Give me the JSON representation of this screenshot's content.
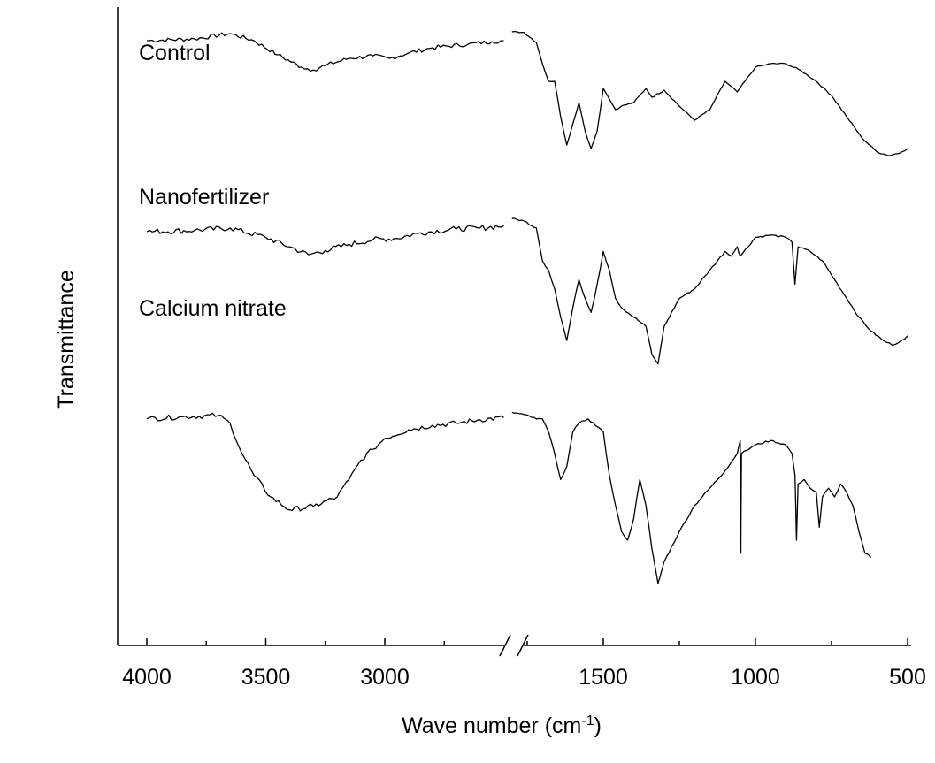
{
  "chart_data": {
    "type": "line",
    "xlabel": "Wave number (cm",
    "xlabel_sup": "-1",
    "xlabel_close": ")",
    "ylabel": "Transmittance",
    "x_reversed": true,
    "axis_break": "between 2800 and 1800",
    "x_ticks": [
      "4000",
      "3500",
      "3000",
      "1500",
      "1000",
      "500"
    ],
    "series": [
      {
        "name": "Control",
        "segments": [
          [
            [
              4000,
              0.835
            ],
            [
              3800,
              0.84
            ],
            [
              3650,
              0.855
            ],
            [
              3550,
              0.835
            ],
            [
              3450,
              0.795
            ],
            [
              3350,
              0.76
            ],
            [
              3300,
              0.752
            ],
            [
              3250,
              0.765
            ],
            [
              3150,
              0.785
            ],
            [
              3050,
              0.792
            ],
            [
              2980,
              0.785
            ],
            [
              2900,
              0.8
            ],
            [
              2800,
              0.815
            ],
            [
              2650,
              0.825
            ],
            [
              2550,
              0.832
            ],
            [
              2500,
              0.835
            ]
          ],
          [
            [
              1800,
              0.86
            ],
            [
              1760,
              0.858
            ],
            [
              1720,
              0.83
            ],
            [
              1700,
              0.77
            ],
            [
              1680,
              0.72
            ],
            [
              1660,
              0.72
            ],
            [
              1640,
              0.62
            ],
            [
              1620,
              0.54
            ],
            [
              1600,
              0.6
            ],
            [
              1580,
              0.66
            ],
            [
              1560,
              0.58
            ],
            [
              1540,
              0.53
            ],
            [
              1520,
              0.58
            ],
            [
              1500,
              0.7
            ],
            [
              1480,
              0.67
            ],
            [
              1460,
              0.64
            ],
            [
              1440,
              0.65
            ],
            [
              1400,
              0.66
            ],
            [
              1360,
              0.7
            ],
            [
              1340,
              0.675
            ],
            [
              1300,
              0.695
            ],
            [
              1250,
              0.65
            ],
            [
              1200,
              0.61
            ],
            [
              1150,
              0.64
            ],
            [
              1100,
              0.72
            ],
            [
              1060,
              0.69
            ],
            [
              1000,
              0.76
            ],
            [
              950,
              0.77
            ],
            [
              900,
              0.77
            ],
            [
              850,
              0.75
            ],
            [
              800,
              0.72
            ],
            [
              750,
              0.68
            ],
            [
              700,
              0.62
            ],
            [
              650,
              0.56
            ],
            [
              600,
              0.52
            ],
            [
              560,
              0.51
            ],
            [
              520,
              0.52
            ],
            [
              500,
              0.53
            ]
          ]
        ]
      },
      {
        "name": "Nanofertilizer",
        "segments": [
          [
            [
              4000,
              0.562
            ],
            [
              3800,
              0.565
            ],
            [
              3650,
              0.57
            ],
            [
              3500,
              0.55
            ],
            [
              3400,
              0.53
            ],
            [
              3320,
              0.513
            ],
            [
              3250,
              0.522
            ],
            [
              3150,
              0.535
            ],
            [
              3050,
              0.545
            ],
            [
              2950,
              0.548
            ],
            [
              2850,
              0.56
            ],
            [
              2700,
              0.568
            ],
            [
              2600,
              0.57
            ],
            [
              2500,
              0.575
            ]
          ],
          [
            [
              1800,
              0.59
            ],
            [
              1760,
              0.585
            ],
            [
              1720,
              0.57
            ],
            [
              1700,
              0.5
            ],
            [
              1680,
              0.48
            ],
            [
              1660,
              0.44
            ],
            [
              1640,
              0.38
            ],
            [
              1620,
              0.33
            ],
            [
              1600,
              0.4
            ],
            [
              1580,
              0.46
            ],
            [
              1560,
              0.42
            ],
            [
              1540,
              0.39
            ],
            [
              1520,
              0.45
            ],
            [
              1500,
              0.52
            ],
            [
              1480,
              0.48
            ],
            [
              1460,
              0.42
            ],
            [
              1440,
              0.4
            ],
            [
              1400,
              0.38
            ],
            [
              1360,
              0.36
            ],
            [
              1340,
              0.3
            ],
            [
              1320,
              0.28
            ],
            [
              1300,
              0.36
            ],
            [
              1250,
              0.42
            ],
            [
              1200,
              0.44
            ],
            [
              1150,
              0.48
            ],
            [
              1100,
              0.52
            ],
            [
              1080,
              0.51
            ],
            [
              1060,
              0.53
            ],
            [
              1050,
              0.51
            ],
            [
              1000,
              0.55
            ],
            [
              950,
              0.555
            ],
            [
              900,
              0.55
            ],
            [
              880,
              0.54
            ],
            [
              870,
              0.45
            ],
            [
              860,
              0.53
            ],
            [
              820,
              0.52
            ],
            [
              780,
              0.5
            ],
            [
              740,
              0.46
            ],
            [
              700,
              0.42
            ],
            [
              660,
              0.38
            ],
            [
              620,
              0.35
            ],
            [
              580,
              0.33
            ],
            [
              550,
              0.32
            ],
            [
              520,
              0.33
            ],
            [
              500,
              0.34
            ]
          ]
        ]
      },
      {
        "name": "Calcium nitrate",
        "segments": [
          [
            [
              4000,
              0.38
            ],
            [
              3850,
              0.385
            ],
            [
              3700,
              0.388
            ],
            [
              3650,
              0.37
            ],
            [
              3600,
              0.3
            ],
            [
              3550,
              0.25
            ],
            [
              3480,
              0.2
            ],
            [
              3400,
              0.17
            ],
            [
              3300,
              0.178
            ],
            [
              3200,
              0.2
            ],
            [
              3150,
              0.24
            ],
            [
              3100,
              0.285
            ],
            [
              3050,
              0.31
            ],
            [
              3000,
              0.335
            ],
            [
              2900,
              0.355
            ],
            [
              2800,
              0.365
            ],
            [
              2700,
              0.37
            ],
            [
              2600,
              0.378
            ],
            [
              2500,
              0.383
            ]
          ],
          [
            [
              1800,
              0.395
            ],
            [
              1760,
              0.39
            ],
            [
              1720,
              0.38
            ],
            [
              1700,
              0.38
            ],
            [
              1680,
              0.35
            ],
            [
              1660,
              0.3
            ],
            [
              1640,
              0.24
            ],
            [
              1620,
              0.27
            ],
            [
              1600,
              0.35
            ],
            [
              1580,
              0.37
            ],
            [
              1550,
              0.38
            ],
            [
              1500,
              0.35
            ],
            [
              1480,
              0.25
            ],
            [
              1460,
              0.18
            ],
            [
              1440,
              0.12
            ],
            [
              1420,
              0.1
            ],
            [
              1400,
              0.15
            ],
            [
              1380,
              0.24
            ],
            [
              1360,
              0.18
            ],
            [
              1340,
              0.08
            ],
            [
              1320,
              0.0
            ],
            [
              1300,
              0.05
            ],
            [
              1250,
              0.12
            ],
            [
              1200,
              0.18
            ],
            [
              1150,
              0.22
            ],
            [
              1100,
              0.26
            ],
            [
              1060,
              0.3
            ],
            [
              1050,
              0.33
            ],
            [
              1048,
              0.07
            ],
            [
              1046,
              0.3
            ],
            [
              1000,
              0.32
            ],
            [
              950,
              0.33
            ],
            [
              900,
              0.32
            ],
            [
              880,
              0.3
            ],
            [
              870,
              0.25
            ],
            [
              865,
              0.1
            ],
            [
              860,
              0.23
            ],
            [
              840,
              0.24
            ],
            [
              820,
              0.22
            ],
            [
              800,
              0.21
            ],
            [
              790,
              0.13
            ],
            [
              780,
              0.2
            ],
            [
              760,
              0.22
            ],
            [
              740,
              0.2
            ],
            [
              720,
              0.23
            ],
            [
              700,
              0.21
            ],
            [
              680,
              0.18
            ],
            [
              660,
              0.12
            ],
            [
              640,
              0.07
            ],
            [
              620,
              0.06
            ]
          ]
        ]
      }
    ]
  }
}
